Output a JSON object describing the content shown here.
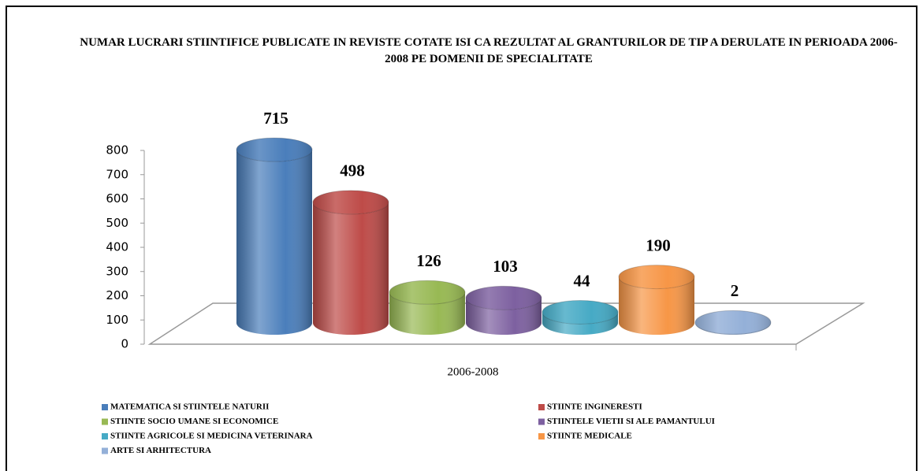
{
  "chart_data": {
    "type": "bar",
    "title": "NUMAR LUCRARI STIINTIFICE PUBLICATE  IN REVISTE COTATE ISI CA REZULTAT AL GRANTURILOR DE TIP A DERULATE IN PERIOADA 2006-2008 PE DOMENII DE SPECIALITATE",
    "categories": [
      "2006-2008"
    ],
    "series": [
      {
        "name": "MATEMATICA  SI STIINTELE  NATURII",
        "color": "#4a7ebb",
        "values": [
          715
        ]
      },
      {
        "name": "STIINTE  INGINERESTI",
        "color": "#be4b48",
        "values": [
          498
        ]
      },
      {
        "name": "STIINTE  SOCIO UMANE  SI ECONOMICE",
        "color": "#98b954",
        "values": [
          126
        ]
      },
      {
        "name": "STIINTELE  VIETII SI ALE  PAMANTULUI",
        "color": "#7d60a0",
        "values": [
          103
        ]
      },
      {
        "name": "STIINTE  AGRICOLE  SI MEDICINA  VETERINARA",
        "color": "#46aac5",
        "values": [
          44
        ]
      },
      {
        "name": "STIINTE  MEDICALE",
        "color": "#f79646",
        "values": [
          190
        ]
      },
      {
        "name": "ARTE  SI ARHITECTURA",
        "color": "#94b0d8",
        "values": [
          2
        ]
      }
    ],
    "ylim": [
      0,
      800
    ],
    "yticks": [
      0,
      100,
      200,
      300,
      400,
      500,
      600,
      700,
      800
    ]
  }
}
